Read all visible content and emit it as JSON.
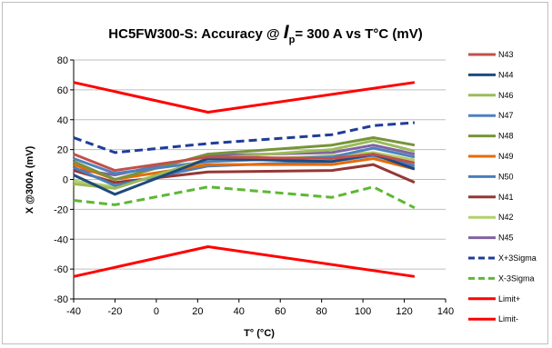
{
  "chart_data": {
    "type": "line",
    "title_prefix": "HC5FW300-S:  Accuracy @ ",
    "title_symbol": "I",
    "title_subscript": "p",
    "title_suffix": "= 300 A vs T°C (mV)",
    "xlabel": "T° (°C)",
    "ylabel": "X @300A  (mV)",
    "xlim": [
      -40,
      140
    ],
    "ylim": [
      -80,
      80
    ],
    "xticks": [
      "-40",
      "-20",
      "0",
      "20",
      "40",
      "60",
      "80",
      "100",
      "120",
      "140"
    ],
    "yticks": [
      "80",
      "60",
      "40",
      "20",
      "0",
      "-20",
      "-40",
      "-60",
      "-80"
    ],
    "grid": "horizontal",
    "legend_position": "right",
    "x": [
      -40,
      -20,
      25,
      85,
      105,
      125
    ],
    "series": [
      {
        "name": "N43",
        "color": "#c0504d",
        "dash": "solid",
        "values": [
          17,
          6,
          15,
          14,
          17,
          11
        ]
      },
      {
        "name": "N44",
        "color": "#1f497d",
        "dash": "solid",
        "values": [
          3,
          -10,
          14,
          12,
          17,
          7
        ]
      },
      {
        "name": "N46",
        "color": "#9bbb59",
        "dash": "solid",
        "values": [
          -3,
          -6,
          14,
          20,
          26,
          19
        ]
      },
      {
        "name": "N47",
        "color": "#4f81bd",
        "dash": "solid",
        "values": [
          14,
          4,
          12,
          15,
          21,
          15
        ]
      },
      {
        "name": "N48",
        "color": "#77933c",
        "dash": "solid",
        "values": [
          12,
          0,
          17,
          23,
          28,
          23
        ]
      },
      {
        "name": "N49",
        "color": "#e46c0a",
        "dash": "solid",
        "values": [
          10,
          0,
          10,
          10,
          14,
          7
        ]
      },
      {
        "name": "N50",
        "color": "#4a7ebb",
        "dash": "solid",
        "values": [
          8,
          -4,
          9,
          12,
          16,
          9
        ]
      },
      {
        "name": "N41",
        "color": "#953735",
        "dash": "solid",
        "values": [
          6,
          -2,
          5,
          6,
          10,
          -2
        ]
      },
      {
        "name": "N42",
        "color": "#b3cf6b",
        "dash": "solid",
        "values": [
          -1,
          -5,
          12,
          16,
          18,
          13
        ]
      },
      {
        "name": "N45",
        "color": "#8064a2",
        "dash": "solid",
        "values": [
          7,
          3,
          16,
          18,
          23,
          17
        ]
      },
      {
        "name": "X+3Sigma",
        "color": "#1f3d99",
        "dash": "dash",
        "values": [
          28,
          18,
          24,
          30,
          36,
          38
        ]
      },
      {
        "name": "X-3Sigma",
        "color": "#5cb833",
        "dash": "dash",
        "values": [
          -14,
          -17,
          -5,
          -12,
          -5,
          -19
        ]
      },
      {
        "name": "Limit+",
        "color": "#ff0000",
        "dash": "solid",
        "x": [
          -40,
          25,
          125
        ],
        "values": [
          65,
          45,
          65
        ]
      },
      {
        "name": "Limit-",
        "color": "#ff0000",
        "dash": "solid",
        "x": [
          -40,
          25,
          125
        ],
        "values": [
          -65,
          -45,
          -65
        ]
      }
    ]
  }
}
